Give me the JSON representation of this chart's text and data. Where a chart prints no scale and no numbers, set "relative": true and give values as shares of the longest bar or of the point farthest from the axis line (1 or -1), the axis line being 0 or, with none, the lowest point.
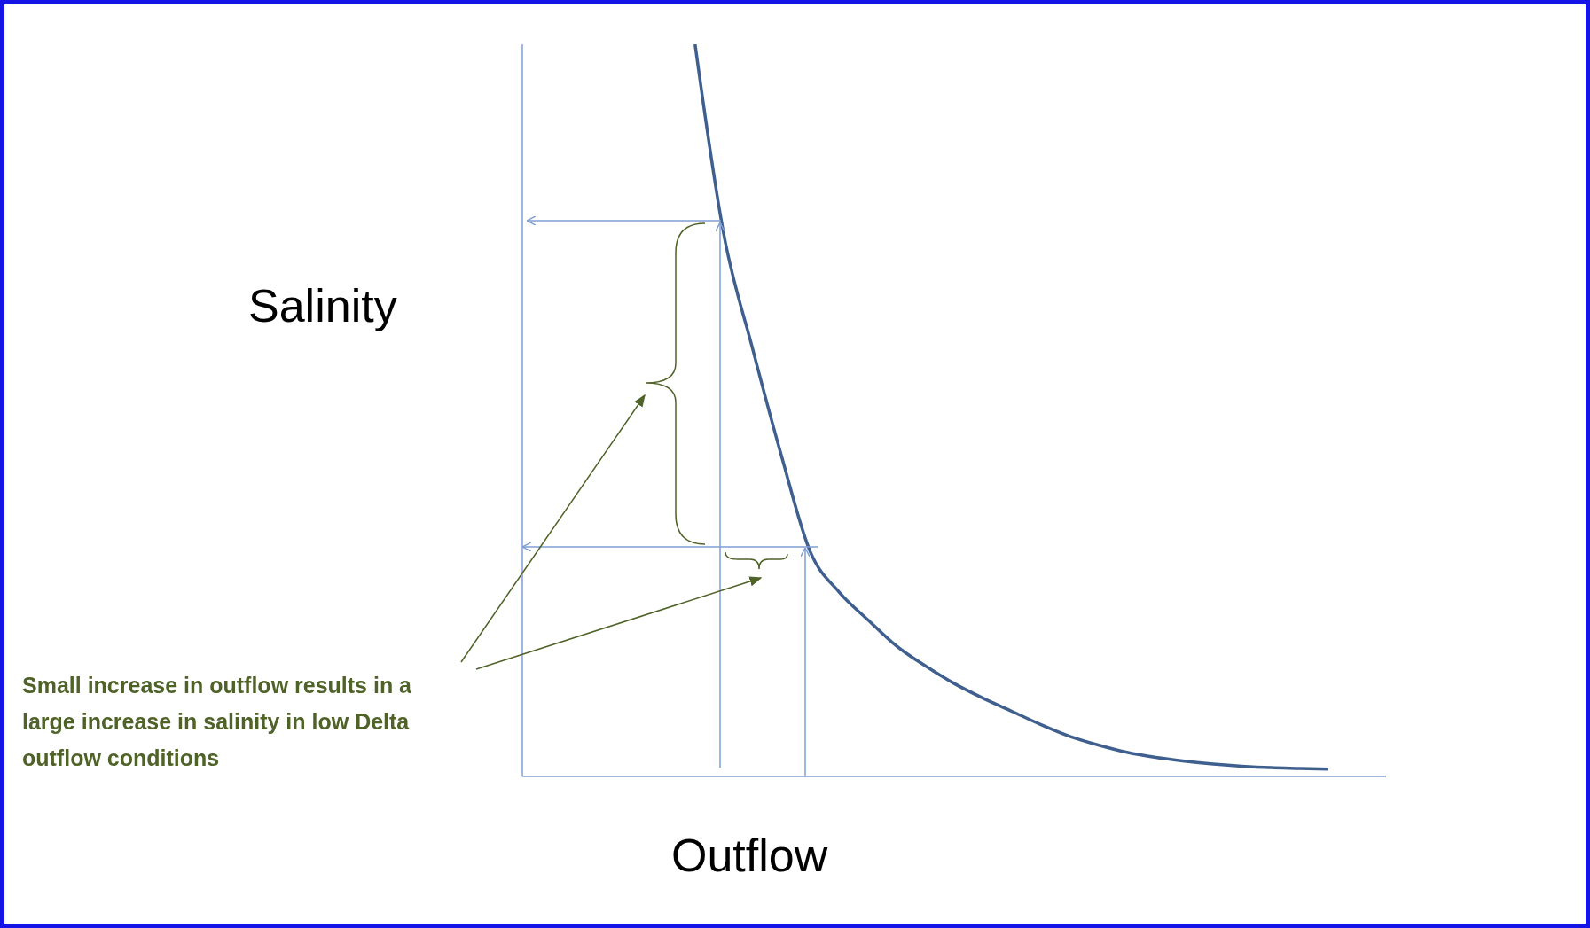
{
  "chart_data": {
    "type": "line",
    "relative": true,
    "xlabel": "Outflow",
    "ylabel": "Salinity",
    "categories": [
      null,
      null,
      null,
      null,
      null,
      null,
      null,
      null,
      null,
      null,
      null,
      null,
      null,
      null,
      null,
      null,
      null,
      null,
      null,
      null,
      null,
      null,
      null,
      null,
      null,
      null,
      null,
      null,
      null,
      null,
      null
    ],
    "series": [
      {
        "color": "#3f5f8f",
        "values": [
          null,
          null,
          null,
          null,
          null,
          null,
          1,
          0.74,
          0.584,
          0.438,
          0.307,
          0.252,
          0.214,
          0.178,
          0.151,
          0.127,
          0.107,
          0.089,
          0.071,
          0.055,
          0.043,
          0.033,
          0.026,
          0.021,
          0.017,
          0.014,
          0.012,
          0.011,
          0.01,
          null,
          null
        ]
      }
    ],
    "annotations": [
      "Small increase in outflow results in a large increase in salinity in low Delta outflow conditions"
    ]
  }
}
